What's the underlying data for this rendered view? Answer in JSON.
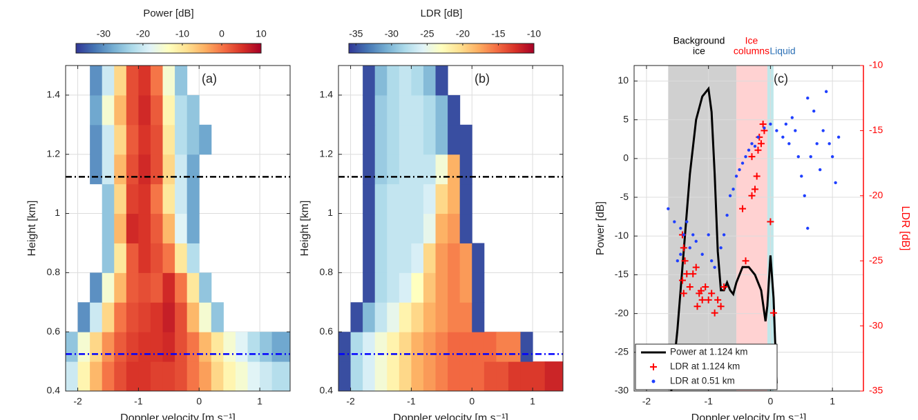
{
  "chart_data": [
    {
      "type": "heatmap",
      "panel": "(a)",
      "colorbar_label": "Power [dB]",
      "clim": [
        -37,
        10
      ],
      "cticks": [
        -30,
        -20,
        -10,
        0,
        10
      ],
      "colormap": [
        "#313695",
        "#4575b4",
        "#74add1",
        "#abd9e9",
        "#e0f3f8",
        "#ffffbf",
        "#fee090",
        "#fdae61",
        "#f46d43",
        "#d73027",
        "#a50026"
      ],
      "x_label": "Doppler velocity [m s⁻¹]",
      "y_label": "Height [km]",
      "xlim": [
        -2.2,
        1.5
      ],
      "ylim": [
        0.4,
        1.5
      ],
      "xticks": [
        -2,
        -1,
        0,
        1
      ],
      "yticks": [
        0.4,
        0.6,
        0.8,
        1,
        1.2,
        1.4
      ],
      "grid": true,
      "xbins": [
        -2.2,
        -2.0,
        -1.8,
        -1.6,
        -1.4,
        -1.2,
        -1.0,
        -0.8,
        -0.6,
        -0.4,
        -0.2,
        0.0,
        0.2,
        0.4,
        0.6,
        0.8,
        1.0,
        1.2,
        1.5
      ],
      "ybins": [
        0.4,
        0.5,
        0.6,
        0.7,
        0.8,
        0.9,
        1.0,
        1.1,
        1.2,
        1.3,
        1.4,
        1.5
      ],
      "z": [
        [
          -20,
          -12,
          -5,
          0,
          3,
          5,
          5,
          4,
          4,
          3,
          0,
          -3,
          -8,
          -12,
          -15,
          -18,
          -20,
          -22
        ],
        [
          -25,
          -15,
          -8,
          -2,
          2,
          4,
          5,
          5,
          6,
          3,
          0,
          -5,
          -10,
          -15,
          -18,
          -22,
          -25,
          -28
        ],
        [
          null,
          -30,
          -20,
          -8,
          0,
          3,
          4,
          5,
          7,
          3,
          -5,
          -15,
          -25,
          null,
          null,
          null,
          null,
          null
        ],
        [
          null,
          null,
          -30,
          -15,
          -5,
          2,
          3,
          2,
          6,
          0,
          -10,
          -25,
          null,
          null,
          null,
          null,
          null,
          null
        ],
        [
          null,
          null,
          null,
          -25,
          -10,
          2,
          5,
          3,
          0,
          -10,
          -22,
          null,
          null,
          null,
          null,
          null,
          null,
          null
        ],
        [
          null,
          null,
          null,
          -25,
          -5,
          6,
          5,
          2,
          -5,
          -18,
          -28,
          null,
          null,
          null,
          null,
          null,
          null,
          null
        ],
        [
          null,
          null,
          null,
          -25,
          -8,
          4,
          5,
          0,
          -10,
          -20,
          -28,
          null,
          null,
          null,
          null,
          null,
          null,
          null
        ],
        [
          null,
          null,
          -30,
          -20,
          -5,
          3,
          6,
          3,
          -8,
          -20,
          -28,
          null,
          null,
          null,
          null,
          null,
          null,
          null
        ],
        [
          null,
          null,
          -30,
          -20,
          -8,
          2,
          5,
          3,
          -10,
          -22,
          -25,
          -28,
          null,
          null,
          null,
          null,
          null,
          null
        ],
        [
          null,
          null,
          -28,
          -15,
          -5,
          3,
          6,
          2,
          -12,
          -22,
          -25,
          null,
          null,
          null,
          null,
          null,
          null,
          null
        ],
        [
          null,
          null,
          -30,
          -20,
          -8,
          3,
          5,
          0,
          -15,
          -25,
          null,
          null,
          null,
          null,
          null,
          null,
          null,
          null
        ]
      ],
      "hlines": [
        {
          "y": 1.124,
          "color": "#000000"
        },
        {
          "y": 0.525,
          "color": "#0000ff"
        }
      ]
    },
    {
      "type": "heatmap",
      "panel": "(b)",
      "colorbar_label": "LDR [dB]",
      "clim": [
        -36,
        -10
      ],
      "cticks": [
        -35,
        -30,
        -25,
        -20,
        -15,
        -10
      ],
      "colormap": [
        "#313695",
        "#4575b4",
        "#74add1",
        "#abd9e9",
        "#e0f3f8",
        "#ffffbf",
        "#fee090",
        "#fdae61",
        "#f46d43",
        "#d73027",
        "#a50026"
      ],
      "x_label": "Doppler velocity [m s⁻¹]",
      "y_label": "Height [km]",
      "xlim": [
        -2.2,
        1.5
      ],
      "ylim": [
        0.4,
        1.5
      ],
      "xticks": [
        -2,
        -1,
        0,
        1
      ],
      "yticks": [
        0.4,
        0.6,
        0.8,
        1,
        1.2,
        1.4
      ],
      "grid": true,
      "xbins": [
        -2.2,
        -2.0,
        -1.8,
        -1.6,
        -1.4,
        -1.2,
        -1.0,
        -0.8,
        -0.6,
        -0.4,
        -0.2,
        0.0,
        0.2,
        0.4,
        0.6,
        0.8,
        1.0,
        1.2,
        1.5
      ],
      "ybins": [
        0.4,
        0.5,
        0.6,
        0.7,
        0.8,
        0.9,
        1.0,
        1.1,
        1.2,
        1.3,
        1.4,
        1.5
      ],
      "z": [
        [
          -35,
          -28,
          -26,
          -24,
          -22,
          -20,
          -18,
          -17,
          -16,
          -15,
          -15,
          -15,
          -14,
          -14,
          -13,
          -13,
          -13,
          -12
        ],
        [
          -35,
          -28,
          -26,
          -24,
          -22,
          -20,
          -18,
          -17,
          -16,
          -15,
          -15,
          -15,
          -15,
          -16,
          -16,
          -35,
          null,
          null
        ],
        [
          null,
          -35,
          -30,
          -27,
          -25,
          -22,
          -20,
          -18,
          -17,
          -16,
          -16,
          -35,
          null,
          null,
          null,
          null,
          null,
          null
        ],
        [
          null,
          null,
          -35,
          -28,
          -27,
          -26,
          -23,
          -19,
          -17,
          -16,
          -17,
          -35,
          null,
          null,
          null,
          null,
          null,
          null
        ],
        [
          null,
          null,
          -35,
          -28,
          -27,
          -27,
          -26,
          -20,
          -17,
          -16,
          -17,
          -35,
          null,
          null,
          null,
          null,
          null,
          null
        ],
        [
          null,
          null,
          -35,
          -28,
          -27,
          -27,
          -27,
          -25,
          -18,
          -17,
          -35,
          null,
          null,
          null,
          null,
          null,
          null,
          null
        ],
        [
          null,
          null,
          -35,
          -28,
          -27,
          -27,
          -27,
          -26,
          -20,
          -18,
          -35,
          null,
          null,
          null,
          null,
          null,
          null,
          null
        ],
        [
          null,
          null,
          -35,
          -29,
          -28,
          -27,
          -27,
          -27,
          -24,
          -18,
          -35,
          null,
          null,
          null,
          null,
          null,
          null,
          null
        ],
        [
          null,
          null,
          -35,
          -29,
          -28,
          -27,
          -27,
          -28,
          -30,
          -35,
          -35,
          null,
          null,
          null,
          null,
          null,
          null,
          null
        ],
        [
          null,
          null,
          -35,
          -29,
          -28,
          -27,
          -27,
          -28,
          -30,
          -35,
          null,
          null,
          null,
          null,
          null,
          null,
          null,
          null
        ],
        [
          null,
          null,
          -35,
          -30,
          -28,
          -27,
          -28,
          -30,
          -35,
          null,
          null,
          null,
          null,
          null,
          null,
          null,
          null,
          null
        ]
      ],
      "hlines": [
        {
          "y": 1.124,
          "color": "#000000"
        },
        {
          "y": 0.525,
          "color": "#0000ff"
        }
      ]
    },
    {
      "type": "combo",
      "panel": "(c)",
      "x_label": "Doppler velocity [m s⁻¹]",
      "y_label": "Power [dB]",
      "y2_label": "LDR [dB]",
      "y2_color": "#ff0000",
      "xlim": [
        -2.2,
        1.5
      ],
      "ylim": [
        -30,
        12
      ],
      "y2lim": [
        -35,
        -10
      ],
      "xticks": [
        -2,
        -1,
        0,
        1
      ],
      "yticks": [
        -30,
        -25,
        -20,
        -15,
        -10,
        -5,
        0,
        5,
        10
      ],
      "y2ticks": [
        -35,
        -30,
        -25,
        -20,
        -15,
        -10
      ],
      "grid": true,
      "legend": "lower left",
      "regions": [
        {
          "xrange": [
            -1.65,
            -0.55
          ],
          "color": "#c8c8c8",
          "label": [
            "Background",
            "ice"
          ],
          "label_color": "#000000"
        },
        {
          "xrange": [
            -0.55,
            -0.05
          ],
          "color": "#ffcaca",
          "label": [
            "Ice",
            "columns"
          ],
          "label_color": "#ff0000"
        },
        {
          "xrange": [
            -0.05,
            0.05
          ],
          "color": "#b5e3e6",
          "label": [
            "Liquid"
          ],
          "label_color": "#2a6fb5"
        }
      ],
      "series": [
        {
          "name": "Power at 1.124 km",
          "kind": "line",
          "color": "#000000",
          "axis": "y",
          "x": [
            -1.6,
            -1.5,
            -1.4,
            -1.3,
            -1.2,
            -1.1,
            -1.05,
            -1.0,
            -0.95,
            -0.9,
            -0.85,
            -0.8,
            -0.75,
            -0.7,
            -0.65,
            -0.6,
            -0.55,
            -0.45,
            -0.35,
            -0.25,
            -0.15,
            -0.08,
            -0.05,
            0.0,
            0.05,
            0.1
          ],
          "values": [
            -30,
            -22,
            -12,
            -2,
            5,
            8,
            8.5,
            9,
            6,
            -2,
            -12,
            -17,
            -17,
            -16,
            -17,
            -17.5,
            -16,
            -14,
            -14,
            -15,
            -17,
            -21,
            -19,
            -12.5,
            -18,
            -29
          ]
        },
        {
          "name": "LDR at 1.124 km",
          "kind": "plus",
          "color": "#ff0000",
          "axis": "y2",
          "x": [
            -1.42,
            -1.4,
            -1.38,
            -1.35,
            -1.42,
            -1.3,
            -1.4,
            -1.25,
            -1.2,
            -1.15,
            -1.1,
            -1.18,
            -1.05,
            -1.0,
            -0.95,
            -0.9,
            -0.85,
            -0.8,
            -0.75,
            -1.12,
            -0.4,
            -0.45,
            -0.3,
            -0.25,
            -0.22,
            -0.3,
            -0.2,
            -0.15,
            -0.1,
            -0.12,
            -0.18,
            0.0,
            0.05
          ],
          "values": [
            -23,
            -24,
            -25,
            -26,
            -26.5,
            -27,
            -27.5,
            -26,
            -25.5,
            -27.5,
            -28,
            -28.5,
            -27,
            -28,
            -27.5,
            -29,
            -28,
            -28.5,
            -27,
            -27.3,
            -25,
            -21,
            -20,
            -19.5,
            -18.5,
            -17,
            -16.5,
            -16,
            -15,
            -14.5,
            -15.5,
            -22,
            -29
          ]
        },
        {
          "name": "LDR at 0.51 km",
          "kind": "dot",
          "color": "#1f3fff",
          "axis": "y2",
          "x": [
            -1.65,
            -1.55,
            -1.45,
            -1.4,
            -1.35,
            -1.3,
            -1.25,
            -1.5,
            -1.45,
            -1.2,
            -1.1,
            -1.0,
            -0.95,
            -0.9,
            -0.8,
            -0.75,
            -0.7,
            -0.65,
            -0.6,
            -0.55,
            -0.5,
            -0.45,
            -0.4,
            -0.35,
            -0.3,
            -0.25,
            -0.2,
            -0.1,
            0.0,
            0.1,
            0.2,
            0.25,
            0.3,
            0.4,
            0.45,
            0.5,
            0.55,
            0.6,
            0.65,
            0.7,
            0.75,
            0.8,
            0.85,
            0.9,
            0.95,
            1.0,
            1.05,
            1.1,
            0.6,
            0.35
          ],
          "values": [
            -21,
            -22,
            -22.5,
            -23,
            -22,
            -24,
            -23,
            -25,
            -24.5,
            -23.5,
            -24.5,
            -23,
            -25,
            -25.5,
            -24,
            -23,
            -21.5,
            -20,
            -19.5,
            -18.5,
            -18,
            -17.5,
            -17,
            -16.5,
            -16,
            -16.2,
            -15.5,
            -14.8,
            -14.5,
            -15,
            -15.5,
            -14.5,
            -16,
            -15,
            -17,
            -18.5,
            -20,
            -22.5,
            -17,
            -13.5,
            -16,
            -18,
            -15,
            -12,
            -16,
            -17,
            -19,
            -15.5,
            -12.5,
            -14
          ]
        }
      ]
    }
  ]
}
